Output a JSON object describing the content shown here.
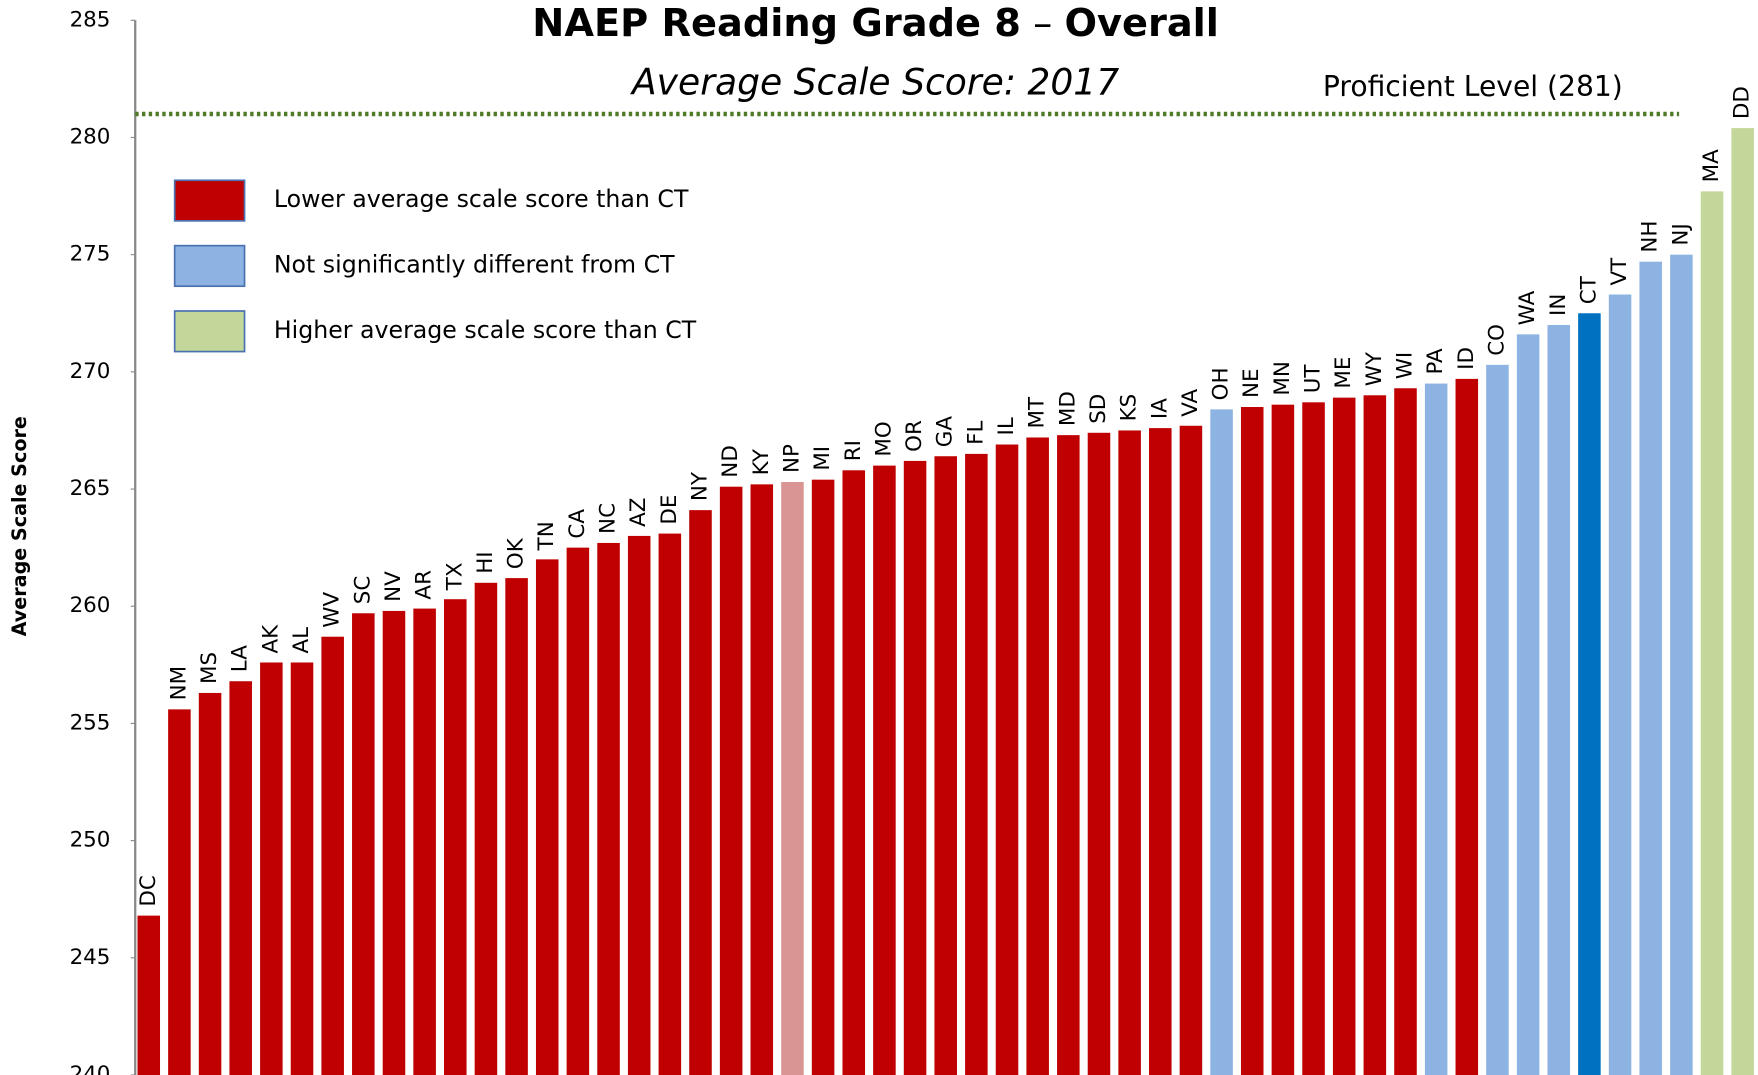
{
  "chart_data": {
    "type": "bar",
    "title": "NAEP Reading Grade 8",
    "title_suffix": "Overall",
    "subtitle": "Average Scale Score: 2017",
    "y_label": "Average Scale Score",
    "categories": [
      "DC",
      "NM",
      "MS",
      "LA",
      "AK",
      "AL",
      "WV",
      "SC",
      "NV",
      "AR",
      "TX",
      "HI",
      "OK",
      "TN",
      "CA",
      "NC",
      "AZ",
      "DE",
      "NY",
      "ND",
      "KY",
      "NP",
      "MI",
      "RI",
      "MO",
      "OR",
      "GA",
      "FL",
      "IL",
      "MT",
      "MD",
      "SD",
      "KS",
      "IA",
      "VA",
      "OH",
      "NE",
      "MN",
      "UT",
      "ME",
      "WY",
      "WI",
      "PA",
      "ID",
      "CO",
      "WA",
      "IN",
      "CT",
      "VT",
      "NH",
      "NJ",
      "MA",
      "DD"
    ],
    "values": [
      246.8,
      255.6,
      256.3,
      256.8,
      257.6,
      257.6,
      258.7,
      259.7,
      259.8,
      259.9,
      260.3,
      261.0,
      261.2,
      262.0,
      262.5,
      262.7,
      263.0,
      263.1,
      264.1,
      265.1,
      265.2,
      265.3,
      265.4,
      265.8,
      266.0,
      266.2,
      266.4,
      266.5,
      266.9,
      267.2,
      267.3,
      267.4,
      267.5,
      267.6,
      267.7,
      268.4,
      268.5,
      268.6,
      268.7,
      268.9,
      269.0,
      269.3,
      269.5,
      269.7,
      270.3,
      271.6,
      272.0,
      272.5,
      273.3,
      274.7,
      275.0,
      277.7,
      280.4
    ],
    "colors": [
      "#c00000",
      "#c00000",
      "#c00000",
      "#c00000",
      "#c00000",
      "#c00000",
      "#c00000",
      "#c00000",
      "#c00000",
      "#c00000",
      "#c00000",
      "#c00000",
      "#c00000",
      "#c00000",
      "#c00000",
      "#c00000",
      "#c00000",
      "#c00000",
      "#c00000",
      "#c00000",
      "#c00000",
      "#d99594",
      "#c00000",
      "#c00000",
      "#c00000",
      "#c00000",
      "#c00000",
      "#c00000",
      "#c00000",
      "#c00000",
      "#c00000",
      "#c00000",
      "#c00000",
      "#c00000",
      "#c00000",
      "#8db3e2",
      "#c00000",
      "#c00000",
      "#c00000",
      "#c00000",
      "#c00000",
      "#c00000",
      "#8db3e2",
      "#c00000",
      "#8db3e2",
      "#8db3e2",
      "#8db3e2",
      "#0070c0",
      "#8db3e2",
      "#8db3e2",
      "#8db3e2",
      "#c4d79b",
      "#c4d79b"
    ],
    "legend": [
      {
        "name": "Lower average scale score than CT",
        "color": "#c00000"
      },
      {
        "name": "Not significantly different from CT",
        "color": "#8db3e2"
      },
      {
        "name": "Higher average scale score than CT",
        "color": "#c4d79b"
      }
    ],
    "reference_line": {
      "value": 281,
      "label": "Proficient Level (281)",
      "color": "#4f7a28"
    },
    "ylim": [
      240,
      285
    ],
    "yticks": [
      240,
      245,
      250,
      255,
      260,
      265,
      270,
      275,
      280,
      285
    ]
  }
}
